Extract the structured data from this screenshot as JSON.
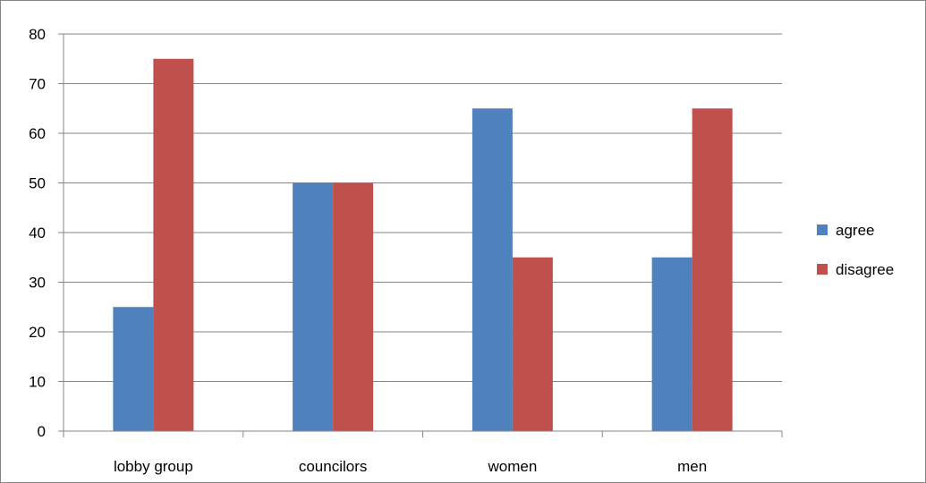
{
  "chart_data": {
    "type": "bar",
    "title": "",
    "xlabel": "",
    "ylabel": "",
    "categories": [
      "lobby group",
      "councilors",
      "women",
      "men"
    ],
    "series": [
      {
        "name": "agree",
        "color": "#4f81bd",
        "values": [
          25,
          50,
          65,
          35
        ]
      },
      {
        "name": "disagree",
        "color": "#c0504d",
        "values": [
          75,
          50,
          35,
          65
        ]
      }
    ],
    "ylim": [
      0,
      80
    ],
    "yticks": [
      "0",
      "10",
      "20",
      "30",
      "40",
      "50",
      "60",
      "70",
      "80"
    ],
    "grid": true,
    "legend_position": "right"
  }
}
